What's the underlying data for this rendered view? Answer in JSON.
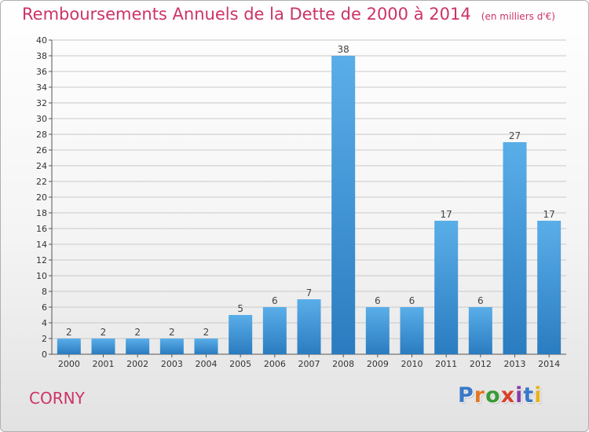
{
  "title": {
    "main": "Remboursements Annuels de la Dette de 2000 à 2014",
    "unit": "(en milliers d'€)"
  },
  "footer": {
    "commune": "CORNY",
    "brand": "Proxiti"
  },
  "colors": {
    "title": "#cc3366",
    "bar_light": "#5aaee8",
    "bar_dark": "#2a7cc0",
    "grid": "#c8c8c8",
    "brand_letters": [
      "#3a78c8",
      "#e07828",
      "#3a9a38",
      "#d8402a",
      "#8a3aa8",
      "#3a78c8",
      "#e8b020"
    ]
  },
  "chart_data": {
    "type": "bar",
    "categories": [
      "2000",
      "2001",
      "2002",
      "2003",
      "2004",
      "2005",
      "2006",
      "2007",
      "2008",
      "2009",
      "2010",
      "2011",
      "2012",
      "2013",
      "2014"
    ],
    "values": [
      2,
      2,
      2,
      2,
      2,
      5,
      6,
      7,
      38,
      6,
      6,
      17,
      6,
      27,
      17
    ],
    "ylim": [
      0,
      40
    ],
    "yticks": [
      0,
      2,
      4,
      6,
      8,
      10,
      12,
      14,
      16,
      18,
      20,
      22,
      24,
      26,
      28,
      30,
      32,
      34,
      36,
      38,
      40
    ],
    "grid": true,
    "xlabel": "",
    "ylabel": ""
  }
}
